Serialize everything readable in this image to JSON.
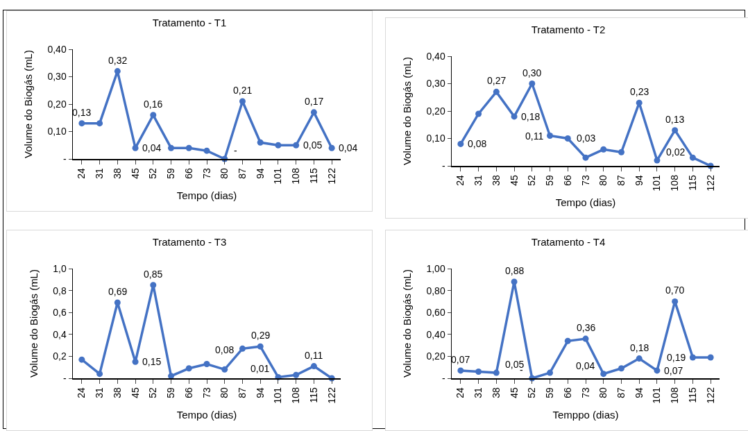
{
  "chart_data": [
    {
      "type": "line",
      "title": "Tratamento - T1",
      "xlabel": "Tempo (dias)",
      "ylabel": "Volume do Biogás (mL)",
      "categories": [
        "24",
        "31",
        "38",
        "45",
        "52",
        "59",
        "66",
        "73",
        "80",
        "87",
        "94",
        "101",
        "108",
        "115",
        "122"
      ],
      "series": [
        {
          "color": "#4472c4",
          "values": [
            0.13,
            0.13,
            0.32,
            0.04,
            0.16,
            0.04,
            0.04,
            0.03,
            0,
            0.21,
            0.06,
            0.05,
            0.05,
            0.17,
            0.04
          ],
          "value_labels": [
            "0,13",
            null,
            "0,32",
            "0,04",
            "0,16",
            null,
            null,
            null,
            "-",
            "0,21",
            null,
            null,
            "0,05",
            "0,17",
            "0,04"
          ]
        }
      ],
      "ylim": [
        0,
        0.4
      ],
      "yticks": [
        {
          "value": 0,
          "label": "-"
        },
        {
          "value": 0.1,
          "label": "0,10"
        },
        {
          "value": 0.2,
          "label": "0,20"
        },
        {
          "value": 0.3,
          "label": "0,30"
        },
        {
          "value": 0.4,
          "label": "0,40"
        }
      ],
      "grid": false,
      "legend": false,
      "marker": "circle",
      "line_style": "solid"
    },
    {
      "type": "line",
      "title": "Tratamento - T2",
      "xlabel": "Tempo (dias)",
      "ylabel": "Volume do Biogás (mL)",
      "categories": [
        "24",
        "31",
        "38",
        "45",
        "52",
        "59",
        "66",
        "73",
        "80",
        "87",
        "94",
        "101",
        "108",
        "115",
        "122"
      ],
      "series": [
        {
          "color": "#4472c4",
          "values": [
            0.08,
            0.19,
            0.27,
            0.18,
            0.3,
            0.11,
            0.1,
            0.03,
            0.06,
            0.05,
            0.23,
            0.02,
            0.13,
            0.03,
            0
          ],
          "value_labels": [
            "0,08",
            null,
            "0,27",
            "0,18",
            "0,30",
            "0,11",
            null,
            "0,03",
            null,
            null,
            "0,23",
            "0,02",
            "0,13",
            null,
            null
          ]
        }
      ],
      "ylim": [
        0,
        0.4
      ],
      "yticks": [
        {
          "value": 0,
          "label": "-"
        },
        {
          "value": 0.1,
          "label": "0,10"
        },
        {
          "value": 0.2,
          "label": "0,20"
        },
        {
          "value": 0.3,
          "label": "0,30"
        },
        {
          "value": 0.4,
          "label": "0,40"
        }
      ],
      "grid": false,
      "legend": false,
      "marker": "circle",
      "line_style": "solid"
    },
    {
      "type": "line",
      "title": "Tratamento - T3",
      "xlabel": "Tempo (dias)",
      "ylabel": "Volume do Biogás (mL)",
      "categories": [
        "24",
        "31",
        "38",
        "45",
        "52",
        "59",
        "66",
        "73",
        "80",
        "87",
        "94",
        "101",
        "108",
        "115",
        "122"
      ],
      "series": [
        {
          "color": "#4472c4",
          "values": [
            0.17,
            0.04,
            0.69,
            0.15,
            0.85,
            0.02,
            0.09,
            0.13,
            0.08,
            0.27,
            0.29,
            0.01,
            0.03,
            0.11,
            0
          ],
          "value_labels": [
            null,
            null,
            "0,69",
            "0,15",
            "0,85",
            null,
            null,
            null,
            "0,08",
            null,
            "0,29",
            "0,01",
            null,
            "0,11",
            null
          ]
        }
      ],
      "ylim": [
        0,
        1.0
      ],
      "yticks": [
        {
          "value": 0,
          "label": "-"
        },
        {
          "value": 0.2,
          "label": "0,2"
        },
        {
          "value": 0.4,
          "label": "0,4"
        },
        {
          "value": 0.6,
          "label": "0,6"
        },
        {
          "value": 0.8,
          "label": "0,8"
        },
        {
          "value": 1.0,
          "label": "1,0"
        }
      ],
      "grid": false,
      "legend": false,
      "marker": "circle",
      "line_style": "solid"
    },
    {
      "type": "line",
      "title": "Tratamento - T4",
      "xlabel": "Temppo (dias)",
      "ylabel": "Volume do Biogás (mL)",
      "categories": [
        "24",
        "31",
        "38",
        "45",
        "52",
        "59",
        "66",
        "73",
        "80",
        "87",
        "94",
        "101",
        "108",
        "115",
        "122"
      ],
      "series": [
        {
          "color": "#4472c4",
          "values": [
            0.07,
            0.06,
            0.05,
            0.88,
            0,
            0.05,
            0.34,
            0.36,
            0.04,
            0.09,
            0.18,
            0.07,
            0.7,
            0.19,
            0.19
          ],
          "value_labels": [
            "0,07",
            null,
            "0,05",
            "0,88",
            "-",
            null,
            null,
            "0,36",
            "0,04",
            null,
            "0,18",
            "0,07",
            "0,70",
            "0,19",
            null
          ]
        }
      ],
      "ylim": [
        0,
        1.0
      ],
      "yticks": [
        {
          "value": 0,
          "label": "-"
        },
        {
          "value": 0.2,
          "label": "0,20"
        },
        {
          "value": 0.4,
          "label": "0,40"
        },
        {
          "value": 0.6,
          "label": "0,60"
        },
        {
          "value": 0.8,
          "label": "0,80"
        },
        {
          "value": 1.0,
          "label": "1,00"
        }
      ],
      "grid": false,
      "legend": false,
      "marker": "circle",
      "line_style": "solid"
    }
  ]
}
